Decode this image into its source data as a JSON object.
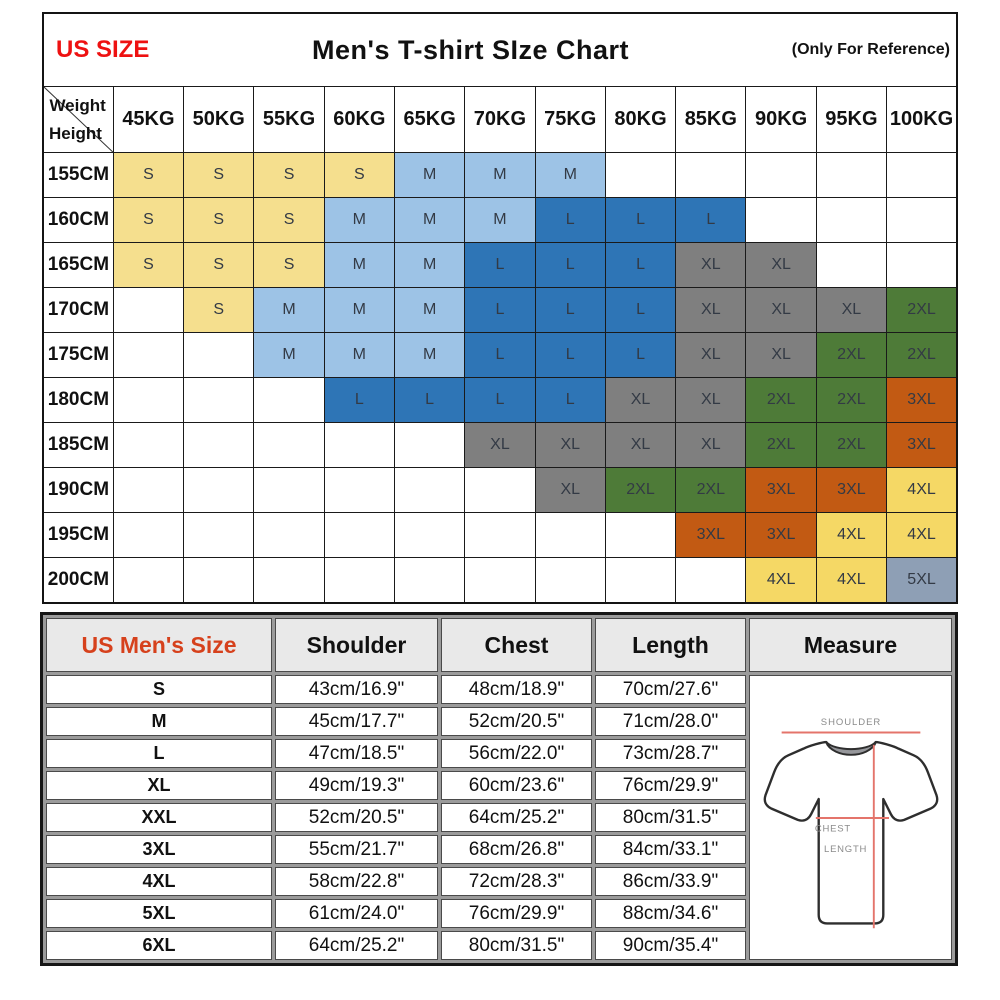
{
  "page": {
    "background": "#ffffff"
  },
  "size_chart": {
    "corner_label": "US SIZE",
    "title": "Men's T-shirt SIze Chart",
    "note": "(Only For Reference)",
    "axis_weight": "Weight",
    "axis_height": "Height",
    "weight_columns": [
      "45KG",
      "50KG",
      "55KG",
      "60KG",
      "65KG",
      "70KG",
      "75KG",
      "80KG",
      "85KG",
      "90KG",
      "95KG",
      "100KG"
    ],
    "rows": [
      {
        "height": "155CM",
        "sizes": [
          "S",
          "S",
          "S",
          "S",
          "M",
          "M",
          "M",
          "",
          "",
          "",
          "",
          ""
        ]
      },
      {
        "height": "160CM",
        "sizes": [
          "S",
          "S",
          "S",
          "M",
          "M",
          "M",
          "L",
          "L",
          "L",
          "",
          "",
          ""
        ]
      },
      {
        "height": "165CM",
        "sizes": [
          "S",
          "S",
          "S",
          "M",
          "M",
          "L",
          "L",
          "L",
          "XL",
          "XL",
          "",
          ""
        ]
      },
      {
        "height": "170CM",
        "sizes": [
          "",
          "S",
          "M",
          "M",
          "M",
          "L",
          "L",
          "L",
          "XL",
          "XL",
          "XL",
          "2XL"
        ]
      },
      {
        "height": "175CM",
        "sizes": [
          "",
          "",
          "M",
          "M",
          "M",
          "L",
          "L",
          "L",
          "XL",
          "XL",
          "2XL",
          "2XL"
        ]
      },
      {
        "height": "180CM",
        "sizes": [
          "",
          "",
          "",
          "L",
          "L",
          "L",
          "L",
          "XL",
          "XL",
          "2XL",
          "2XL",
          "3XL"
        ]
      },
      {
        "height": "185CM",
        "sizes": [
          "",
          "",
          "",
          "",
          "",
          "XL",
          "XL",
          "XL",
          "XL",
          "2XL",
          "2XL",
          "3XL"
        ]
      },
      {
        "height": "190CM",
        "sizes": [
          "",
          "",
          "",
          "",
          "",
          "",
          "XL",
          "2XL",
          "2XL",
          "3XL",
          "3XL",
          "4XL"
        ]
      },
      {
        "height": "195CM",
        "sizes": [
          "",
          "",
          "",
          "",
          "",
          "",
          "",
          "",
          "3XL",
          "3XL",
          "4XL",
          "4XL"
        ]
      },
      {
        "height": "200CM",
        "sizes": [
          "",
          "",
          "",
          "",
          "",
          "",
          "",
          "",
          "",
          "4XL",
          "4XL",
          "5XL"
        ]
      }
    ],
    "size_colors": {
      "S": "#F5DF8E",
      "M": "#9DC3E6",
      "L": "#2E75B6",
      "XL": "#7F7F7F",
      "2XL": "#4E7B38",
      "3XL": "#C25A13",
      "4XL": "#F5D865",
      "5XL": "#8E9FB5"
    },
    "accent_red": "#EE1111"
  },
  "measurements_table": {
    "headers": {
      "size": "US Men's Size",
      "shoulder": "Shoulder",
      "chest": "Chest",
      "length": "Length",
      "measure": "Measure"
    },
    "header_accent": "#D6411C",
    "rows": [
      {
        "size": "S",
        "shoulder": "43cm/16.9\"",
        "chest": "48cm/18.9\"",
        "length": "70cm/27.6\""
      },
      {
        "size": "M",
        "shoulder": "45cm/17.7\"",
        "chest": "52cm/20.5\"",
        "length": "71cm/28.0\""
      },
      {
        "size": "L",
        "shoulder": "47cm/18.5\"",
        "chest": "56cm/22.0\"",
        "length": "73cm/28.7\""
      },
      {
        "size": "XL",
        "shoulder": "49cm/19.3\"",
        "chest": "60cm/23.6\"",
        "length": "76cm/29.9\""
      },
      {
        "size": "XXL",
        "shoulder": "52cm/20.5\"",
        "chest": "64cm/25.2\"",
        "length": "80cm/31.5\""
      },
      {
        "size": "3XL",
        "shoulder": "55cm/21.7\"",
        "chest": "68cm/26.8\"",
        "length": "84cm/33.1\""
      },
      {
        "size": "4XL",
        "shoulder": "58cm/22.8\"",
        "chest": "72cm/28.3\"",
        "length": "86cm/33.9\""
      },
      {
        "size": "5XL",
        "shoulder": "61cm/24.0\"",
        "chest": "76cm/29.9\"",
        "length": "88cm/34.6\""
      },
      {
        "size": "6XL",
        "shoulder": "64cm/25.2\"",
        "chest": "80cm/31.5\"",
        "length": "90cm/35.4\""
      }
    ],
    "measure_diagram": {
      "shoulder_label": "SHOULDER",
      "chest_label": "CHEST",
      "length_label": "LENGTH",
      "line_color": "#E4746B",
      "label_color": "#8b8b8b"
    }
  },
  "chart_data": [
    {
      "type": "table",
      "title": "Men's T-shirt SIze Chart",
      "subtitle": "(Only For Reference)",
      "col_axis": "Weight",
      "row_axis": "Height",
      "columns": [
        "45KG",
        "50KG",
        "55KG",
        "60KG",
        "65KG",
        "70KG",
        "75KG",
        "80KG",
        "85KG",
        "90KG",
        "95KG",
        "100KG"
      ],
      "rows": [
        "155CM",
        "160CM",
        "165CM",
        "170CM",
        "175CM",
        "180CM",
        "185CM",
        "190CM",
        "195CM",
        "200CM"
      ],
      "cells": [
        [
          "S",
          "S",
          "S",
          "S",
          "M",
          "M",
          "M",
          "",
          "",
          "",
          "",
          ""
        ],
        [
          "S",
          "S",
          "S",
          "M",
          "M",
          "M",
          "L",
          "L",
          "L",
          "",
          "",
          ""
        ],
        [
          "S",
          "S",
          "S",
          "M",
          "M",
          "L",
          "L",
          "L",
          "XL",
          "XL",
          "",
          ""
        ],
        [
          "",
          "S",
          "M",
          "M",
          "M",
          "L",
          "L",
          "L",
          "XL",
          "XL",
          "XL",
          "2XL"
        ],
        [
          "",
          "",
          "M",
          "M",
          "M",
          "L",
          "L",
          "L",
          "XL",
          "XL",
          "2XL",
          "2XL"
        ],
        [
          "",
          "",
          "",
          "L",
          "L",
          "L",
          "L",
          "XL",
          "XL",
          "2XL",
          "2XL",
          "3XL"
        ],
        [
          "",
          "",
          "",
          "",
          "",
          "XL",
          "XL",
          "XL",
          "XL",
          "2XL",
          "2XL",
          "3XL"
        ],
        [
          "",
          "",
          "",
          "",
          "",
          "",
          "XL",
          "2XL",
          "2XL",
          "3XL",
          "3XL",
          "4XL"
        ],
        [
          "",
          "",
          "",
          "",
          "",
          "",
          "",
          "",
          "3XL",
          "3XL",
          "4XL",
          "4XL"
        ],
        [
          "",
          "",
          "",
          "",
          "",
          "",
          "",
          "",
          "",
          "4XL",
          "4XL",
          "5XL"
        ]
      ],
      "cell_color_legend": {
        "S": "#F5DF8E",
        "M": "#9DC3E6",
        "L": "#2E75B6",
        "XL": "#7F7F7F",
        "2XL": "#4E7B38",
        "3XL": "#C25A13",
        "4XL": "#F5D865",
        "5XL": "#8E9FB5"
      }
    },
    {
      "type": "table",
      "columns": [
        "US Men's Size",
        "Shoulder",
        "Chest",
        "Length"
      ],
      "rows": [
        [
          "S",
          "43cm/16.9\"",
          "48cm/18.9\"",
          "70cm/27.6\""
        ],
        [
          "M",
          "45cm/17.7\"",
          "52cm/20.5\"",
          "71cm/28.0\""
        ],
        [
          "L",
          "47cm/18.5\"",
          "56cm/22.0\"",
          "73cm/28.7\""
        ],
        [
          "XL",
          "49cm/19.3\"",
          "60cm/23.6\"",
          "76cm/29.9\""
        ],
        [
          "XXL",
          "52cm/20.5\"",
          "64cm/25.2\"",
          "80cm/31.5\""
        ],
        [
          "3XL",
          "55cm/21.7\"",
          "68cm/26.8\"",
          "84cm/33.1\""
        ],
        [
          "4XL",
          "58cm/22.8\"",
          "72cm/28.3\"",
          "86cm/33.9\""
        ],
        [
          "5XL",
          "61cm/24.0\"",
          "76cm/29.9\"",
          "88cm/34.6\""
        ],
        [
          "6XL",
          "64cm/25.2\"",
          "80cm/31.5\"",
          "90cm/35.4\""
        ]
      ]
    }
  ]
}
